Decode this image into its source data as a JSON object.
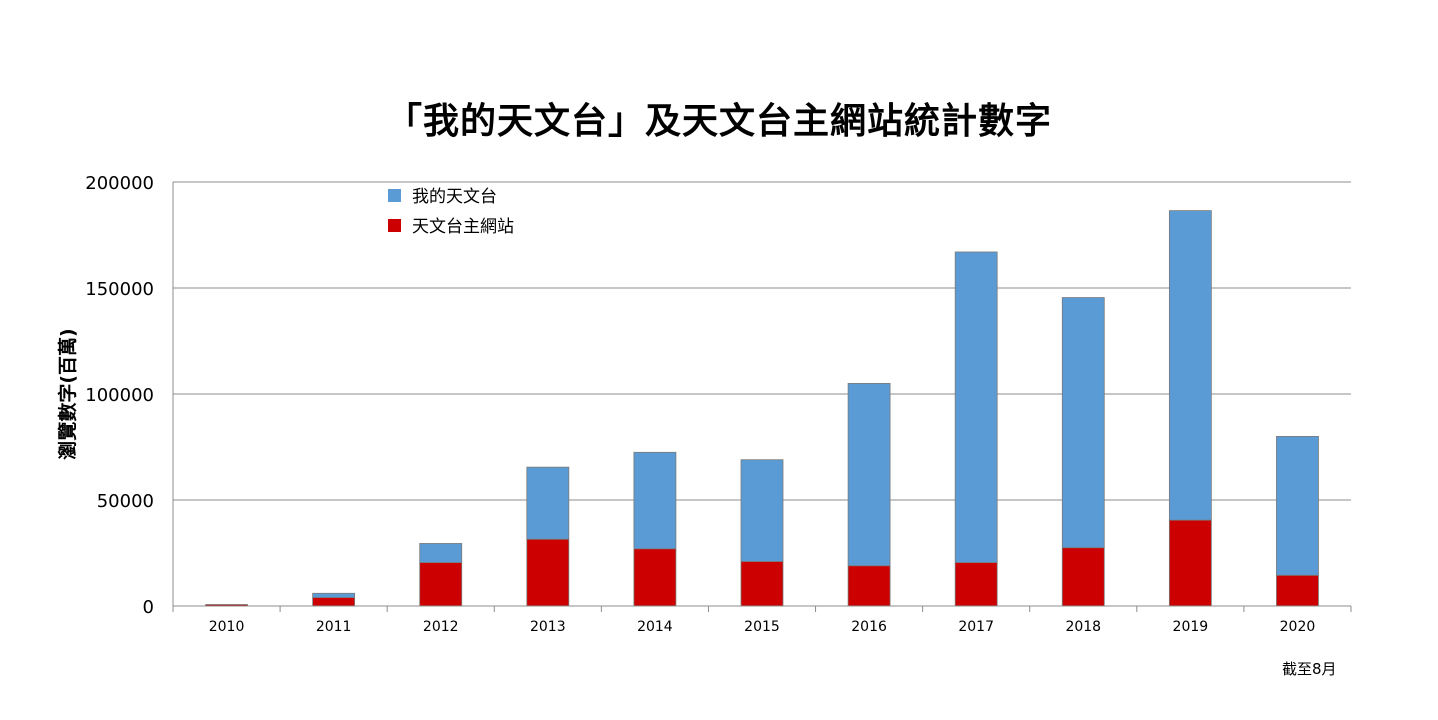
{
  "title": "「我的天文台」及天文台主網站統計數字",
  "note": "截至8月",
  "chart_data": {
    "type": "bar",
    "stacked": true,
    "title": "「我的天文台」及天文台主網站統計數字",
    "xlabel": "",
    "ylabel": "瀏覽數字(百萬)",
    "ylim": [
      0,
      200000
    ],
    "yticks": [
      0,
      50000,
      100000,
      150000,
      200000
    ],
    "ytick_labels": [
      "0",
      "50000",
      "100000",
      "150000",
      "200000"
    ],
    "grid": true,
    "legend_position": "top-left",
    "categories": [
      "2010",
      "2011",
      "2012",
      "2013",
      "2014",
      "2015",
      "2016",
      "2017",
      "2018",
      "2019",
      "2020"
    ],
    "series": [
      {
        "name": "天文台主網站",
        "color": "#cc0000",
        "values": [
          700,
          4000,
          20500,
          31500,
          27000,
          21000,
          19000,
          20500,
          27500,
          40500,
          14500
        ]
      },
      {
        "name": "我的天文台",
        "color": "#5b9bd5",
        "values": [
          0,
          2000,
          9000,
          34000,
          45500,
          48000,
          86000,
          146500,
          118000,
          146000,
          65500
        ]
      }
    ]
  }
}
